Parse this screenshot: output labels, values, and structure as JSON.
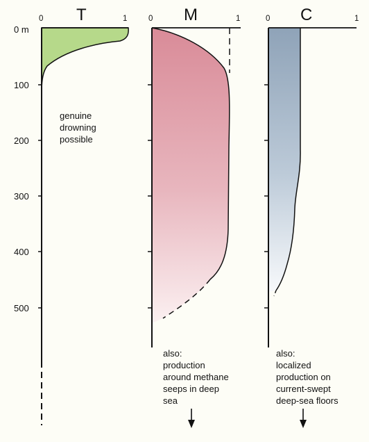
{
  "depth_axis": {
    "unit_label": "0 m",
    "ticks": [
      "100",
      "200",
      "300",
      "400",
      "500"
    ]
  },
  "panels": [
    {
      "key": "T",
      "title": "T",
      "scale_min": "0",
      "scale_max": "1",
      "fill_color": "#b6d98a",
      "notes": [
        "genuine",
        "drowning",
        "possible"
      ]
    },
    {
      "key": "M",
      "title": "M",
      "scale_min": "0",
      "scale_max": "1",
      "fill_color": "#d98b98",
      "notes": [
        "also:",
        "production",
        "around methane",
        "seeps in deep",
        "sea"
      ]
    },
    {
      "key": "C",
      "title": "C",
      "scale_min": "0",
      "scale_max": "1",
      "fill_color": "#8fa3b8",
      "notes": [
        "also:",
        "localized",
        "production on",
        "current-swept",
        "deep-sea floors"
      ]
    }
  ],
  "icons": [
    "down-arrow-icon",
    "down-arrow-icon"
  ]
}
